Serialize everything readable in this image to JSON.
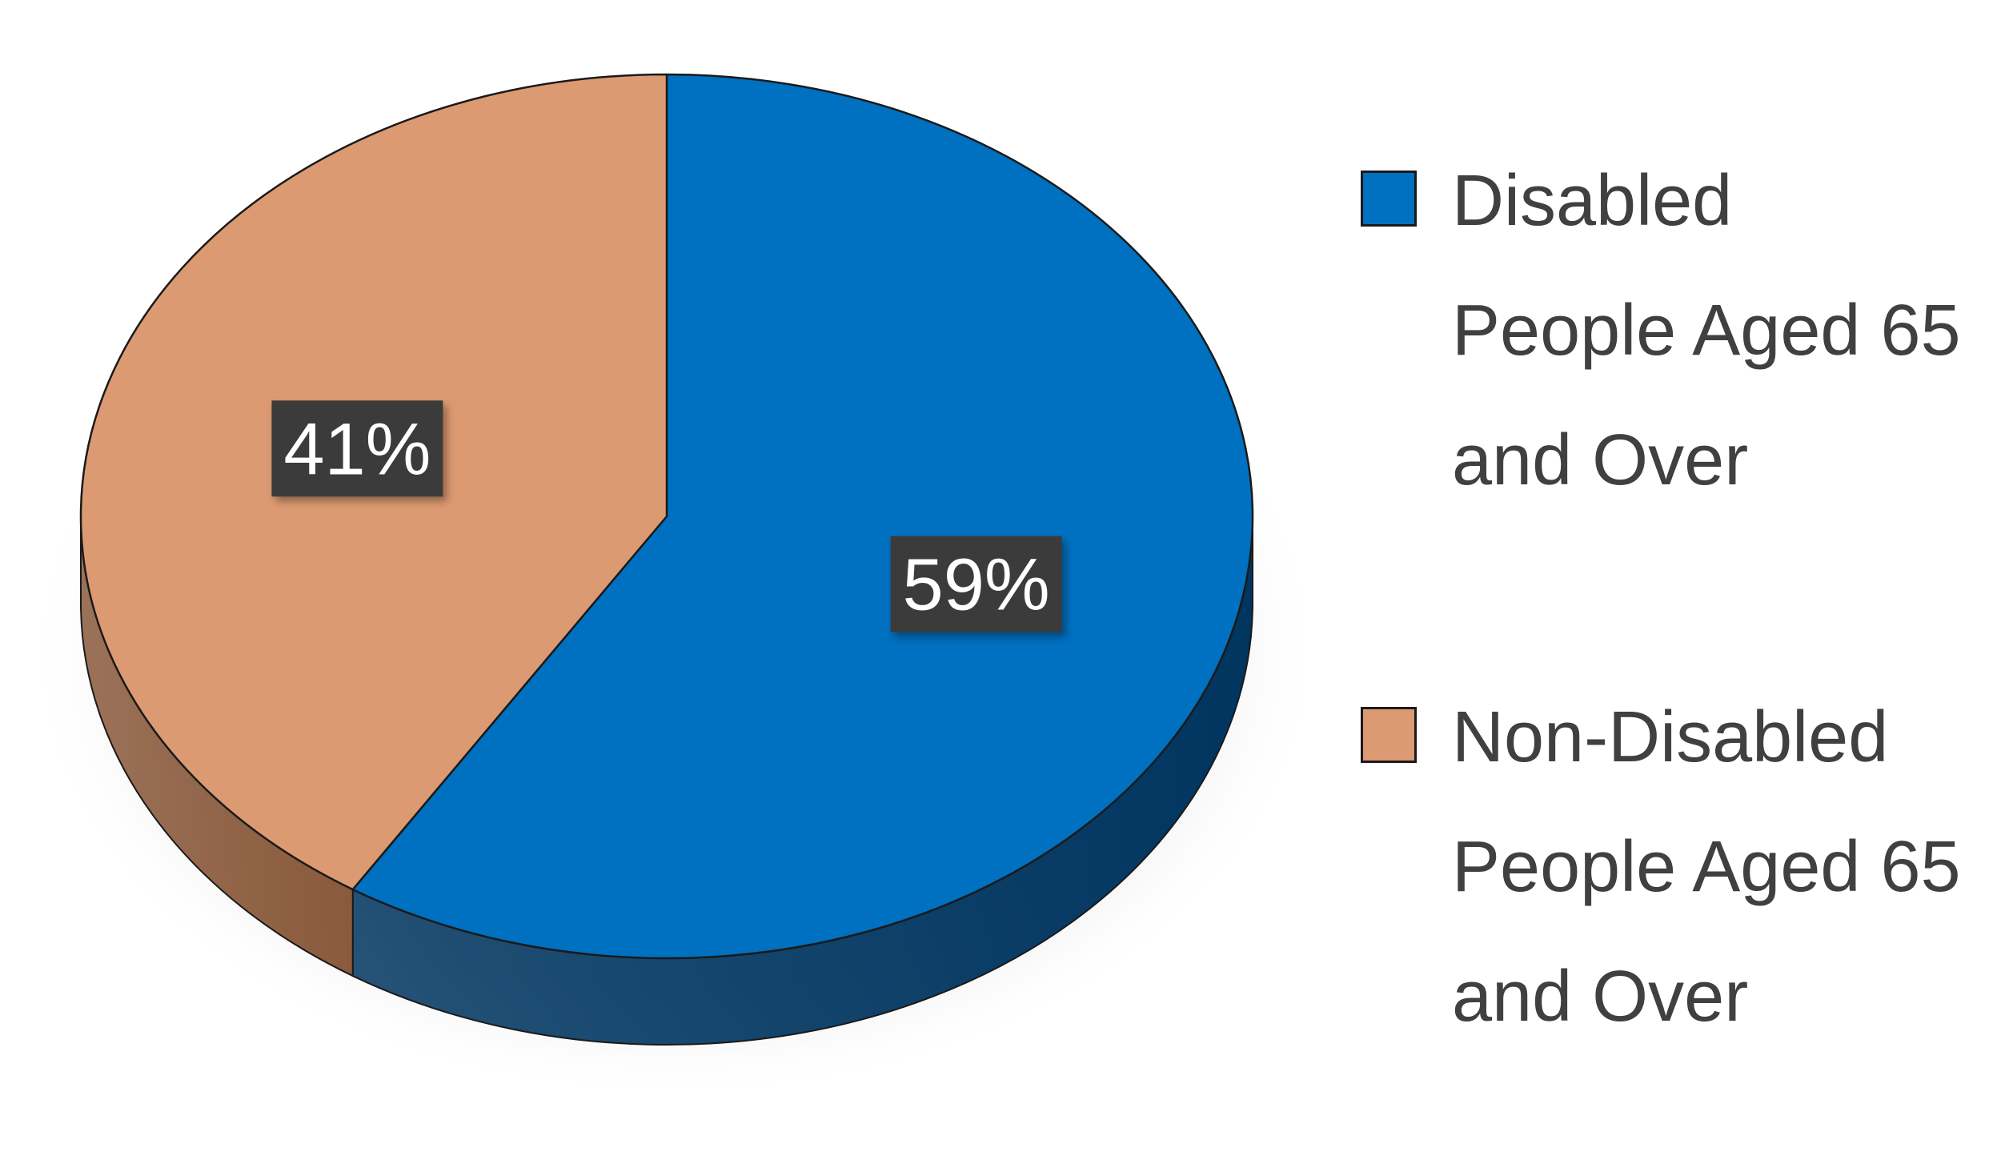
{
  "chart_data": {
    "type": "pie",
    "style": "3d",
    "slices": [
      {
        "name": "Disabled People Aged 65 and Over",
        "value": 59,
        "label": "59%",
        "color": "#0070C0",
        "side_color": "#003560"
      },
      {
        "name": "Non-Disabled People Aged 65 and Over",
        "value": 41,
        "label": "41%",
        "color": "#DC9A72",
        "side_color": "#8A5A3C"
      }
    ],
    "legend_position": "right",
    "label_background": "#3A3A3A",
    "label_text_color": "#FFFFFF",
    "legend_text_color": "#404040"
  }
}
